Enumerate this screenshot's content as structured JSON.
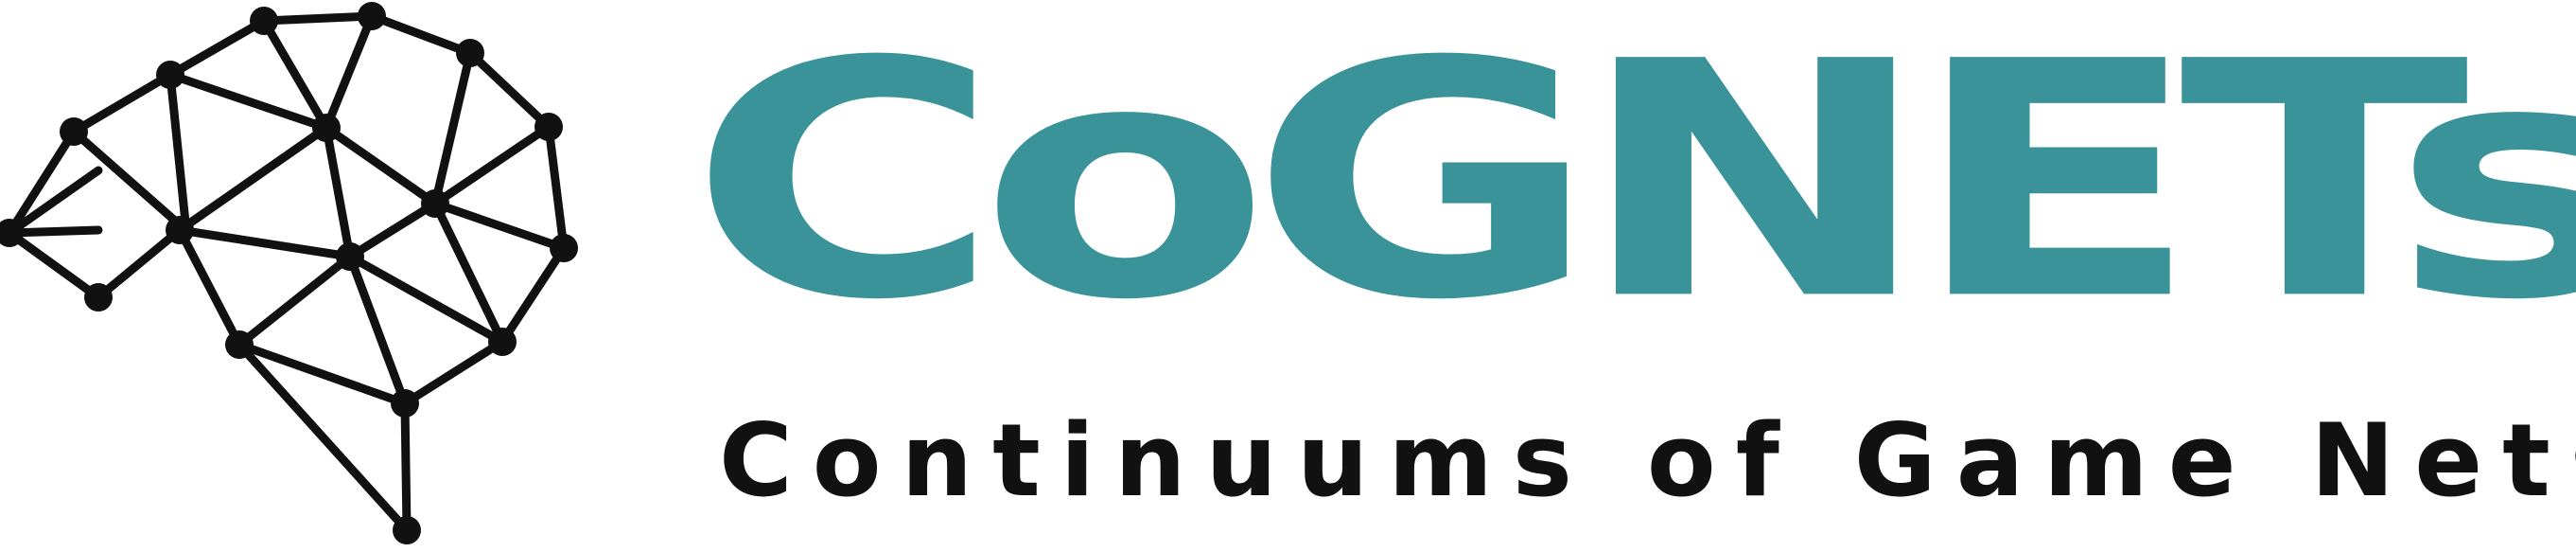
{
  "logo": {
    "title": "CoGNETs",
    "tagline": "Continuums of Game Nets",
    "icon_name": "neural-brain-network-icon",
    "colors": {
      "brand_teal": "#3a9399",
      "ink": "#111111"
    }
  }
}
